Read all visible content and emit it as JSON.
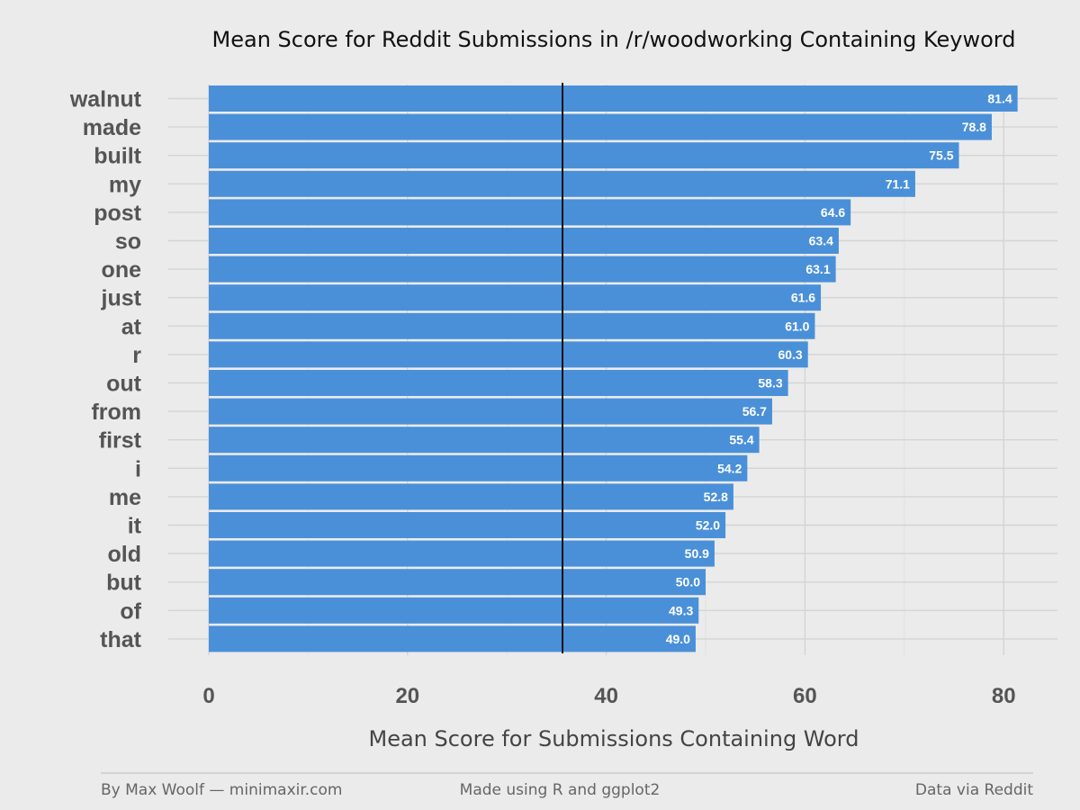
{
  "chart_data": {
    "type": "bar",
    "orientation": "horizontal",
    "title": "Mean Score for Reddit Submissions in /r/woodworking Containing Keyword",
    "xlabel": "Mean Score for Submissions Containing Word",
    "ylabel": "",
    "xlim": [
      0,
      85
    ],
    "x_ticks": [
      0,
      20,
      40,
      60,
      80
    ],
    "x_tick_labels": [
      "0",
      "20",
      "40",
      "60",
      "80"
    ],
    "categories": [
      "walnut",
      "made",
      "built",
      "my",
      "post",
      "so",
      "one",
      "just",
      "at",
      "r",
      "out",
      "from",
      "first",
      "i",
      "me",
      "it",
      "old",
      "but",
      "of",
      "that"
    ],
    "values": [
      81.4,
      78.8,
      75.5,
      71.1,
      64.6,
      63.4,
      63.1,
      61.6,
      61.0,
      60.3,
      58.3,
      56.7,
      55.4,
      54.2,
      52.8,
      52.0,
      50.9,
      50.0,
      49.3,
      49.0
    ],
    "value_labels": [
      "81.4",
      "78.8",
      "75.5",
      "71.1",
      "64.6",
      "63.4",
      "63.1",
      "61.6",
      "61.0",
      "60.3",
      "58.3",
      "56.7",
      "55.4",
      "54.2",
      "52.8",
      "52.0",
      "50.9",
      "50.0",
      "49.3",
      "49.0"
    ],
    "reference_line": 35.6,
    "bar_color": "#4a90d9",
    "grid": true
  },
  "footer": {
    "left": "By Max Woolf — minimaxir.com",
    "center": "Made using R and ggplot2",
    "right": "Data via Reddit"
  },
  "colors": {
    "background": "#ebebeb",
    "grid": "#d4d4d4",
    "reference_line": "#111111"
  }
}
